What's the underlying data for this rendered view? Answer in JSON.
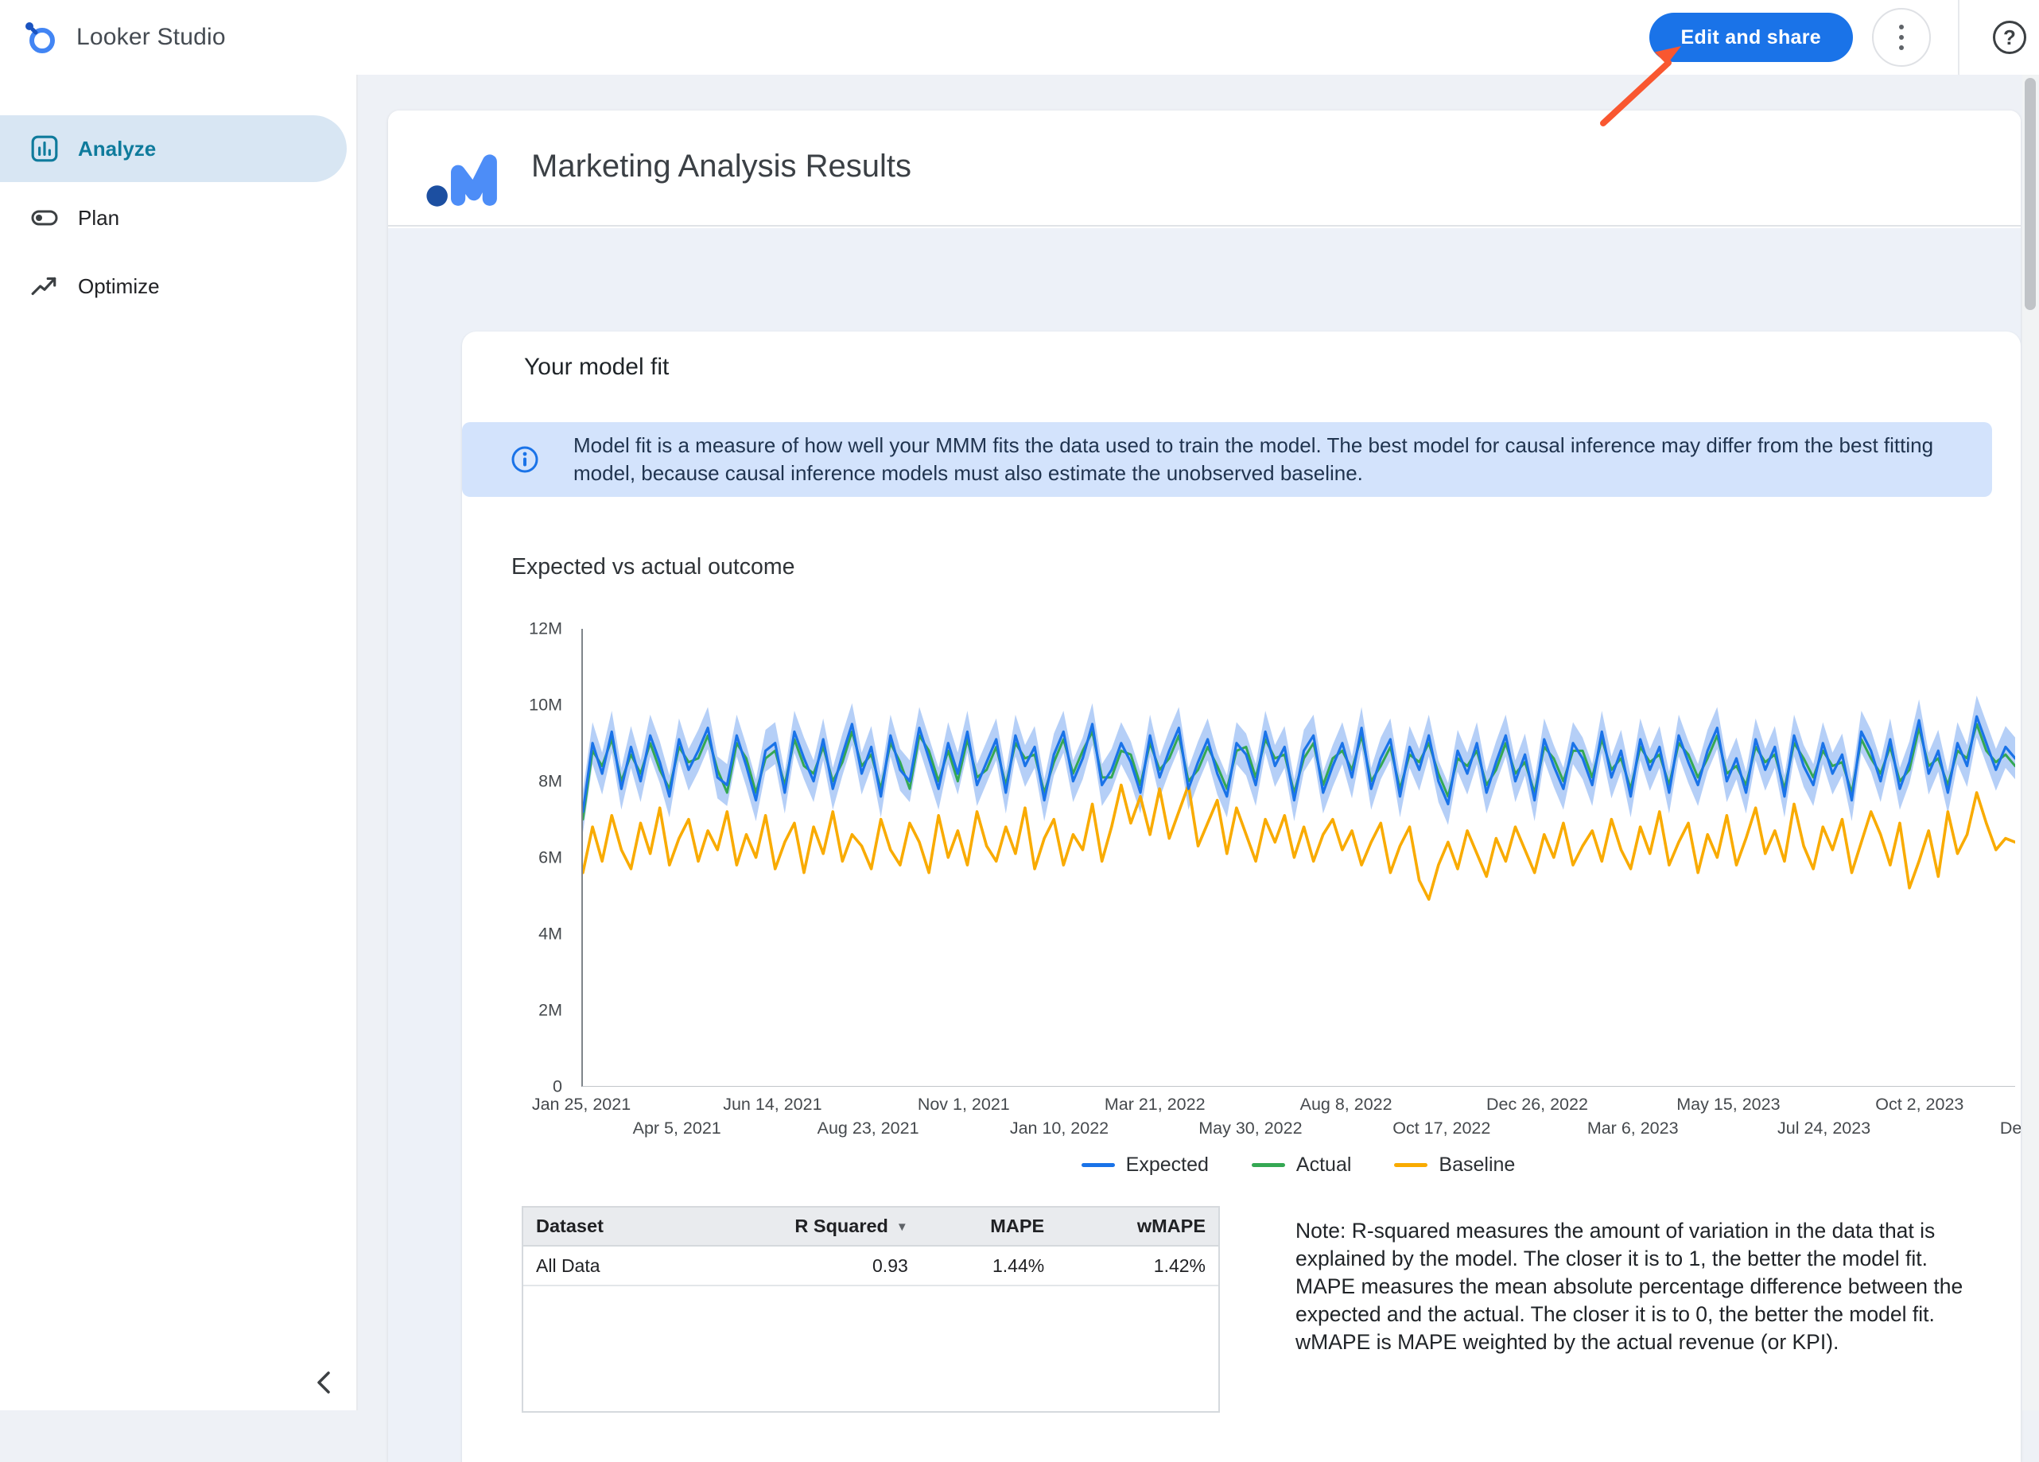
{
  "topbar": {
    "app_title": "Looker Studio",
    "edit_share_label": "Edit and share",
    "help_glyph": "?"
  },
  "sidebar": {
    "items": [
      {
        "label": "Analyze",
        "selected": true
      },
      {
        "label": "Plan",
        "selected": false
      },
      {
        "label": "Optimize",
        "selected": false
      }
    ]
  },
  "report": {
    "title": "Marketing Analysis Results",
    "card_title": "Your model fit",
    "info_banner": "Model fit is a measure of how well your MMM fits the data used to train the model. The best model for causal inference may differ from the best fitting model, because causal inference models must also estimate the unobserved baseline.",
    "section_title": "Expected vs actual outcome",
    "note": "Note: R-squared measures the amount of variation in the data that is explained by the model. The closer it is to 1, the better the model fit. MAPE measures the mean absolute percentage difference between the expected and the actual. The closer it is to 0, the better the model fit. wMAPE is MAPE weighted by the actual revenue (or KPI)."
  },
  "table": {
    "headers": [
      "Dataset",
      "R Squared",
      "MAPE",
      "wMAPE"
    ],
    "sorted_column": "R Squared",
    "sort_direction": "descending",
    "rows": [
      [
        "All Data",
        "0.93",
        "1.44%",
        "1.42%"
      ]
    ]
  },
  "colors": {
    "primary_button": "#1a73e8",
    "selected_nav_bg": "#d8e6f3",
    "selected_nav_text": "#0f7b9c",
    "banner_bg": "#d3e3fc",
    "banner_text": "#20344f",
    "band": "#a3c3f5",
    "annotation_arrow": "#f95730"
  },
  "chart_data": {
    "type": "line",
    "title": "Expected vs actual outcome",
    "xlabel": "",
    "ylabel": "",
    "y_max_millions": 12,
    "y_ticks": [
      "0",
      "2M",
      "4M",
      "6M",
      "8M",
      "10M",
      "12M"
    ],
    "x_ticks_row1": [
      "Jan 25, 2021",
      "Jun 14, 2021",
      "Nov 1, 2021",
      "Mar 21, 2022",
      "Aug 8, 2022",
      "Dec 26, 2022",
      "May 15, 2023",
      "Oct 2, 2023"
    ],
    "x_ticks_row2": [
      "Apr 5, 2021",
      "Aug 23, 2021",
      "Jan 10, 2022",
      "May 30, 2022",
      "Oct 17, 2022",
      "Mar 6, 2023",
      "Jul 24, 2023",
      "Dec"
    ],
    "legend": [
      {
        "name": "Expected",
        "color": "#1a73e8"
      },
      {
        "name": "Actual",
        "color": "#34a853"
      },
      {
        "name": "Baseline",
        "color": "#f9ab00"
      }
    ],
    "band_half_width_millions": 0.55,
    "series": {
      "expected_millions": [
        7.2,
        9.0,
        8.2,
        9.3,
        7.8,
        8.9,
        8.0,
        9.2,
        8.5,
        7.6,
        9.1,
        8.3,
        8.8,
        9.4,
        8.1,
        7.9,
        9.2,
        8.4,
        7.5,
        8.8,
        9.0,
        7.7,
        9.3,
        8.6,
        8.0,
        9.1,
        7.8,
        8.7,
        9.5,
        8.2,
        8.9,
        7.6,
        9.2,
        8.3,
        8.0,
        9.4,
        8.6,
        7.8,
        9.0,
        8.2,
        9.3,
        7.9,
        8.5,
        9.1,
        7.7,
        9.2,
        8.4,
        8.9,
        7.5,
        8.7,
        9.3,
        8.0,
        8.6,
        9.5,
        7.9,
        8.3,
        9.0,
        8.5,
        7.7,
        9.2,
        8.1,
        8.8,
        9.4,
        7.8,
        8.5,
        9.1,
        8.2,
        7.6,
        9.0,
        8.7,
        7.9,
        9.3,
        8.4,
        8.9,
        7.5,
        8.8,
        9.2,
        7.7,
        8.4,
        9.0,
        8.1,
        9.4,
        7.8,
        8.6,
        9.1,
        7.6,
        8.9,
        8.3,
        9.2,
        8.0,
        7.4,
        8.8,
        8.2,
        9.0,
        7.7,
        8.5,
        9.2,
        8.0,
        8.7,
        7.5,
        9.1,
        8.4,
        7.8,
        9.0,
        8.6,
        7.9,
        9.3,
        8.1,
        8.8,
        7.6,
        9.1,
        8.3,
        8.9,
        7.7,
        9.2,
        8.5,
        7.9,
        8.8,
        9.4,
        8.0,
        8.6,
        7.7,
        9.1,
        8.3,
        8.9,
        7.6,
        9.2,
        8.4,
        7.9,
        9.0,
        8.2,
        8.7,
        7.5,
        9.3,
        8.8,
        8.0,
        9.1,
        7.8,
        8.5,
        9.6,
        8.2,
        8.8,
        7.7,
        9.0,
        8.4,
        9.7,
        9.0,
        8.3,
        8.9,
        8.6
      ],
      "actual_millions": [
        7.0,
        8.8,
        8.4,
        9.1,
        8.0,
        8.7,
        8.2,
        9.0,
        8.3,
        7.8,
        8.9,
        8.5,
        8.6,
        9.2,
        8.3,
        7.7,
        9.0,
        8.6,
        7.7,
        8.6,
        8.8,
        7.9,
        9.1,
        8.4,
        8.2,
        8.9,
        8.0,
        8.5,
        9.3,
        8.4,
        8.7,
        7.8,
        9.0,
        8.5,
        7.8,
        9.2,
        8.8,
        8.0,
        8.8,
        8.0,
        9.1,
        8.1,
        8.3,
        8.9,
        7.9,
        9.0,
        8.6,
        8.7,
        7.7,
        8.5,
        9.1,
        8.2,
        8.8,
        9.3,
        8.1,
        8.1,
        8.8,
        8.7,
        7.9,
        9.0,
        8.3,
        8.6,
        9.2,
        8.0,
        8.3,
        8.9,
        8.4,
        7.8,
        8.8,
        8.9,
        8.1,
        9.1,
        8.6,
        8.7,
        7.7,
        8.6,
        9.0,
        7.9,
        8.6,
        8.8,
        8.3,
        9.2,
        8.0,
        8.4,
        8.9,
        7.8,
        8.7,
        8.5,
        9.0,
        8.2,
        7.6,
        8.6,
        8.4,
        8.8,
        7.9,
        8.3,
        9.0,
        8.2,
        8.5,
        7.7,
        8.9,
        8.6,
        8.0,
        8.8,
        8.8,
        8.1,
        9.1,
        8.3,
        8.6,
        7.8,
        8.9,
        8.5,
        8.7,
        7.9,
        9.0,
        8.7,
        8.1,
        8.6,
        9.2,
        8.2,
        8.4,
        7.9,
        8.9,
        8.5,
        8.7,
        7.8,
        9.0,
        8.6,
        8.1,
        8.8,
        8.4,
        8.5,
        7.7,
        9.1,
        8.6,
        8.2,
        8.9,
        8.0,
        8.3,
        9.4,
        8.4,
        8.6,
        7.9,
        8.8,
        8.6,
        9.5,
        8.8,
        8.5,
        8.7,
        8.4
      ],
      "baseline_millions": [
        5.6,
        6.8,
        5.9,
        7.1,
        6.2,
        5.7,
        6.9,
        6.1,
        7.3,
        5.8,
        6.5,
        7.0,
        5.9,
        6.7,
        6.2,
        7.2,
        5.8,
        6.6,
        6.0,
        7.1,
        5.7,
        6.4,
        6.9,
        5.6,
        6.8,
        6.1,
        7.2,
        5.9,
        6.6,
        6.3,
        5.7,
        7.0,
        6.2,
        5.8,
        6.9,
        6.4,
        5.6,
        7.1,
        6.0,
        6.7,
        5.8,
        7.2,
        6.3,
        5.9,
        6.8,
        6.1,
        7.3,
        5.7,
        6.5,
        7.0,
        5.8,
        6.6,
        6.2,
        7.4,
        5.9,
        6.8,
        7.9,
        6.9,
        7.6,
        6.6,
        7.8,
        6.5,
        7.2,
        7.9,
        6.3,
        6.9,
        7.5,
        6.1,
        7.3,
        6.6,
        5.9,
        7.0,
        6.4,
        7.1,
        6.0,
        6.8,
        5.9,
        6.6,
        7.0,
        6.2,
        6.7,
        5.8,
        6.4,
        6.9,
        5.6,
        6.3,
        6.8,
        5.4,
        4.9,
        5.8,
        6.4,
        5.7,
        6.7,
        6.1,
        5.5,
        6.5,
        5.9,
        6.8,
        6.2,
        5.6,
        6.6,
        6.0,
        6.9,
        5.8,
        6.3,
        6.7,
        5.9,
        7.0,
        6.2,
        5.7,
        6.8,
        6.1,
        7.2,
        5.8,
        6.4,
        6.9,
        5.6,
        6.6,
        6.0,
        7.1,
        5.8,
        6.5,
        7.3,
        6.1,
        6.7,
        5.9,
        7.4,
        6.3,
        5.7,
        6.8,
        6.2,
        7.0,
        5.6,
        6.4,
        7.2,
        6.6,
        5.8,
        6.9,
        5.2,
        5.9,
        6.7,
        5.5,
        7.2,
        6.1,
        6.6,
        7.7,
        6.9,
        6.2,
        6.5,
        6.4
      ]
    }
  }
}
